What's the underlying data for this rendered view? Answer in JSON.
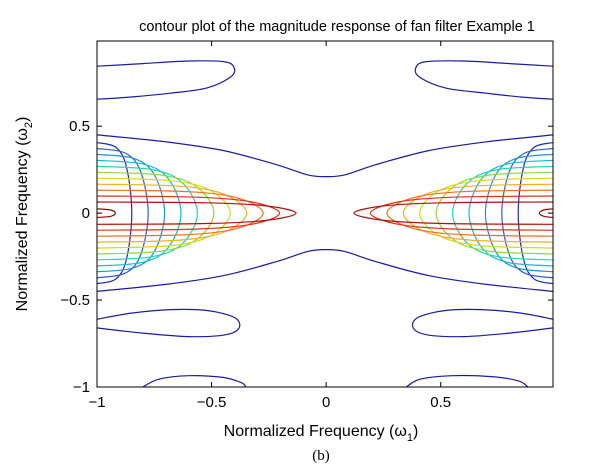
{
  "chart_data": {
    "type": "contour",
    "title": "contour plot of the magnitude response of fan filter Example 1",
    "xlabel": "Normalized Frequency (ω",
    "xlabel_sub": "1",
    "ylabel": "Normalized Frequency (ω",
    "ylabel_sub": "2",
    "label_close": ")",
    "caption": "(b)",
    "xlim": [
      -1,
      0.99
    ],
    "ylim": [
      -1,
      0.99
    ],
    "x_ticks": [
      -1,
      -0.5,
      0,
      0.5
    ],
    "x_tick_labels": [
      "−1",
      "−0.5",
      "0",
      "0.5"
    ],
    "y_ticks": [
      -1,
      -0.5,
      0,
      0.5
    ],
    "y_tick_labels": [
      "−1",
      "−0.5",
      "0",
      "0.5"
    ],
    "grid": false,
    "colormap": "jet",
    "colors": {
      "low": "#1a1aa6",
      "levels": [
        "#1f2bb3",
        "#2b5fd0",
        "#1f8fe0",
        "#18b8d8",
        "#20d8b8",
        "#8fd840",
        "#d8d820",
        "#f0b020",
        "#f07020",
        "#e03018",
        "#b01010"
      ]
    },
    "outer_contours": {
      "side_lobes_right": [
        [
          0.24,
          0.82
        ],
        [
          0.44,
          0.71
        ],
        [
          0.57,
          0.68
        ],
        [
          0.72,
          0.66
        ],
        [
          0.9,
          0.65
        ],
        [
          0.99,
          0.655
        ],
        "...",
        [
          0.99,
          0.8
        ],
        [
          0.8,
          0.835
        ],
        [
          0.6,
          0.86
        ],
        [
          0.4,
          0.87
        ],
        [
          0.28,
          0.86
        ]
      ],
      "side_lobes_upper_left_outer": [
        [
          -1.0,
          0.655
        ],
        [
          -0.9,
          0.665
        ],
        [
          -0.75,
          0.685
        ],
        [
          -0.6,
          0.72
        ],
        [
          -0.45,
          0.77
        ],
        [
          -0.38,
          0.86
        ],
        [
          -0.43,
          0.94
        ],
        [
          -0.6,
          0.96
        ],
        [
          -0.8,
          0.96
        ],
        [
          -0.99,
          0.97
        ]
      ],
      "bottom_lobes": [
        [
          -0.8,
          -1.0
        ],
        [
          -0.7,
          -0.95
        ],
        [
          -0.5,
          -0.94
        ],
        [
          -0.35,
          -0.98
        ],
        [
          -0.32,
          -1.0
        ],
        [
          0.35,
          -1.0
        ],
        [
          0.4,
          -0.94
        ],
        [
          0.6,
          -0.93
        ],
        [
          0.8,
          -0.96
        ],
        [
          0.9,
          -1.0
        ]
      ],
      "center_contour_y": 0.21
    },
    "main_lobes": {
      "description": "nested concentric contour loops opening to the left/right edges around y=0",
      "levels": 11
    }
  }
}
